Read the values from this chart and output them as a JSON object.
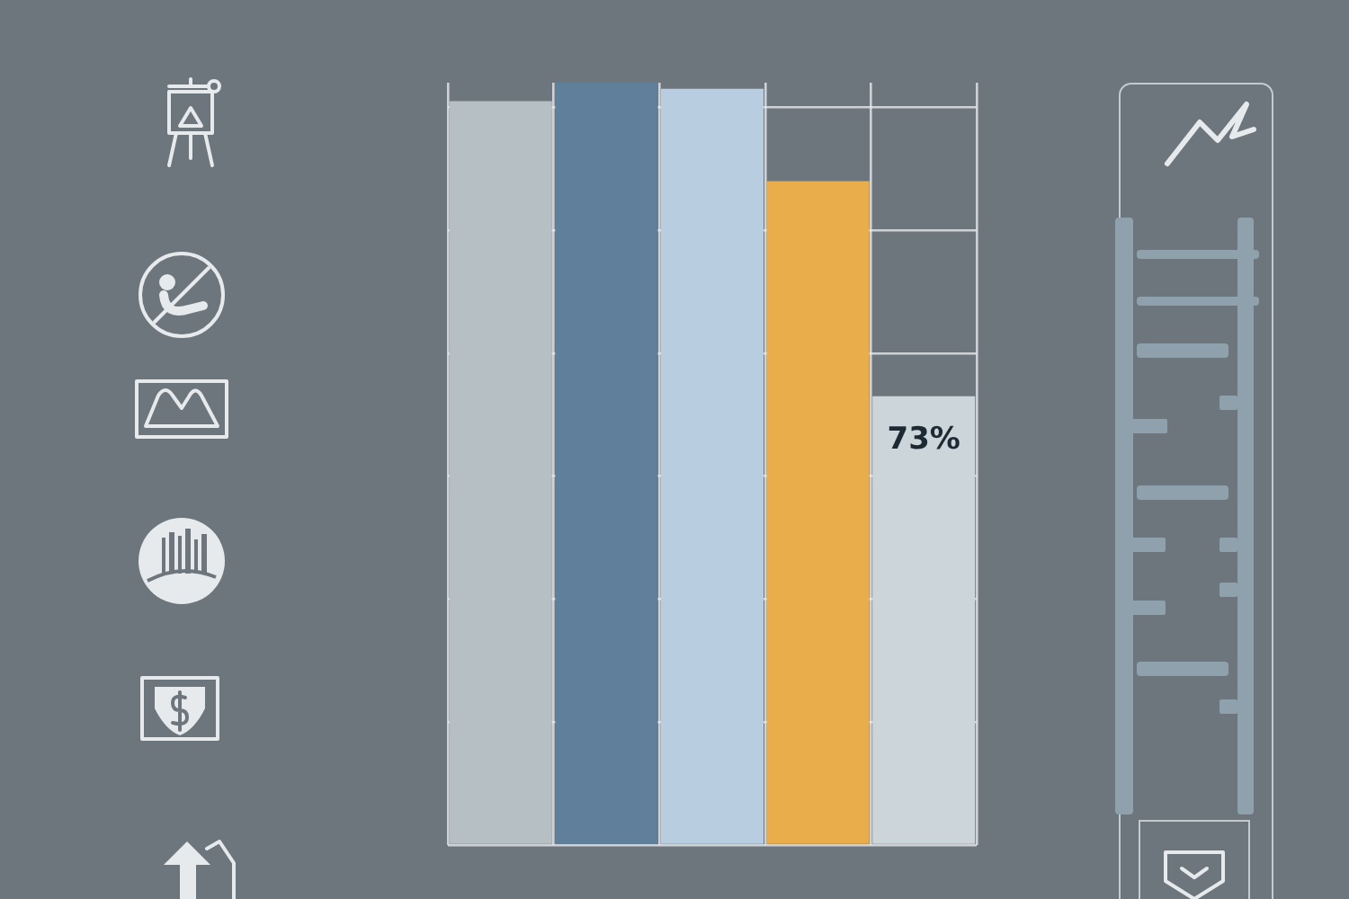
{
  "chart_data": {
    "type": "bar",
    "categories": [
      null,
      null,
      null,
      null,
      null
    ],
    "values": [
      121,
      124,
      123,
      108,
      73
    ],
    "colors": [
      "#b6c0c4",
      "#5f7f9b",
      "#b9cde1",
      "#e9ae4b",
      "#ccd5da"
    ],
    "value_labels": [
      null,
      null,
      null,
      null,
      "73%"
    ],
    "grid": true,
    "tick_labels": false
  }
}
